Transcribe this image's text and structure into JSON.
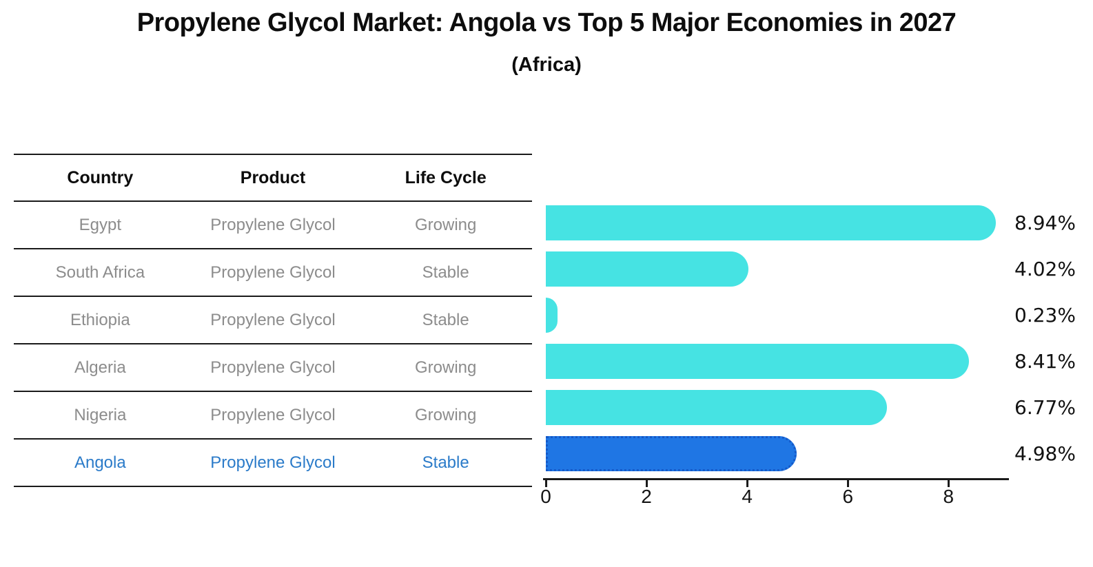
{
  "title": "Propylene Glycol Market: Angola vs Top 5 Major Economies in 2027",
  "subtitle": "(Africa)",
  "table": {
    "headers": {
      "country": "Country",
      "product": "Product",
      "life_cycle": "Life Cycle"
    },
    "rows": [
      {
        "country": "Egypt",
        "product": "Propylene Glycol",
        "life_cycle": "Growing",
        "highlighted": false
      },
      {
        "country": "South Africa",
        "product": "Propylene Glycol",
        "life_cycle": "Stable",
        "highlighted": false
      },
      {
        "country": "Ethiopia",
        "product": "Propylene Glycol",
        "life_cycle": "Stable",
        "highlighted": false
      },
      {
        "country": "Algeria",
        "product": "Propylene Glycol",
        "life_cycle": "Growing",
        "highlighted": false
      },
      {
        "country": "Nigeria",
        "product": "Propylene Glycol",
        "life_cycle": "Growing",
        "highlighted": false
      },
      {
        "country": "Angola",
        "product": "Propylene Glycol",
        "life_cycle": "Stable",
        "highlighted": true
      }
    ]
  },
  "chart_data": {
    "type": "bar",
    "orientation": "horizontal",
    "title": "Propylene Glycol Market: Angola vs Top 5 Major Economies in 2027 (Africa)",
    "categories": [
      "Egypt",
      "South Africa",
      "Ethiopia",
      "Algeria",
      "Nigeria",
      "Angola"
    ],
    "values": [
      8.94,
      4.02,
      0.23,
      8.41,
      6.77,
      4.98
    ],
    "labels": [
      "8.94%",
      "4.02%",
      "0.23%",
      "8.41%",
      "6.77%",
      "4.98%"
    ],
    "x_ticks": [
      "0",
      "2",
      "4",
      "6",
      "8"
    ],
    "x_tick_values": [
      0,
      2,
      4,
      6,
      8
    ],
    "xlim": [
      0,
      9.2
    ],
    "grid": false,
    "legend": "none",
    "bar_color": "#46e3e3",
    "highlight_color": "#1f76e4",
    "highlight_border_color": "#1559c8",
    "highlight_text_color": "#2b7bc9",
    "highlight_index": 5
  }
}
